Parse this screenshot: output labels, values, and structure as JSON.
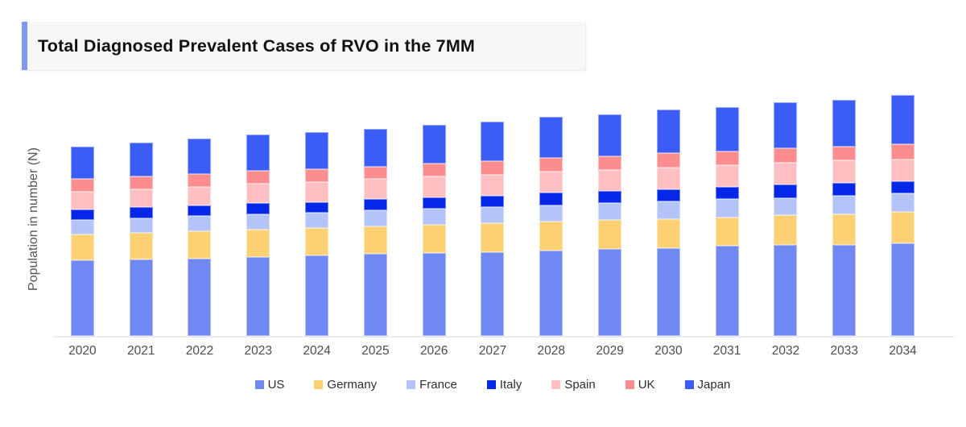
{
  "header": {
    "title": "Total Diagnosed Prevalent Cases of RVO in the 7MM",
    "accent_color": "#7e99f5",
    "box_background": "#f7f7f8"
  },
  "chart_data": {
    "type": "bar",
    "stacked": true,
    "title": "Total Diagnosed Prevalent Cases of RVO in the 7MM",
    "xlabel": "",
    "ylabel": "Population in number (N)",
    "grid": false,
    "y_axis_tick_labels": "none visible (values below are relative units estimated from bar pixel heights, 1 unit = 1 px)",
    "legend_position": "bottom",
    "categories": [
      "2020",
      "2021",
      "2022",
      "2023",
      "2024",
      "2025",
      "2026",
      "2027",
      "2028",
      "2029",
      "2030",
      "2031",
      "2032",
      "2033",
      "2034"
    ],
    "series": [
      {
        "name": "US",
        "color": "#6f88f2",
        "values": [
          94,
          95,
          96,
          98,
          100,
          102,
          103,
          104,
          106,
          108,
          109,
          112,
          113,
          113,
          115
        ]
      },
      {
        "name": "Germany",
        "color": "#fdd173",
        "values": [
          32,
          33,
          34,
          34,
          34,
          34,
          35,
          36,
          36,
          36,
          36,
          35,
          37,
          38,
          39
        ]
      },
      {
        "name": "France",
        "color": "#b4c3f8",
        "values": [
          18,
          18,
          19,
          19,
          19,
          20,
          20,
          20,
          20,
          21,
          22,
          23,
          21,
          23,
          23
        ]
      },
      {
        "name": "Italy",
        "color": "#0528e8",
        "values": [
          13,
          14,
          13,
          14,
          13,
          14,
          14,
          14,
          16,
          15,
          15,
          15,
          17,
          16,
          15
        ]
      },
      {
        "name": "Spain",
        "color": "#fdbfc1",
        "values": [
          22,
          22,
          23,
          24,
          25,
          25,
          26,
          26,
          26,
          26,
          27,
          27,
          27,
          28,
          27
        ]
      },
      {
        "name": "UK",
        "color": "#fc8d8f",
        "values": [
          16,
          16,
          16,
          16,
          16,
          15,
          16,
          17,
          17,
          17,
          18,
          17,
          18,
          17,
          19
        ]
      },
      {
        "name": "Japan",
        "color": "#3c5cf6",
        "values": [
          40,
          42,
          44,
          45,
          46,
          47,
          48,
          49,
          51,
          52,
          54,
          55,
          57,
          58,
          61
        ]
      }
    ]
  }
}
